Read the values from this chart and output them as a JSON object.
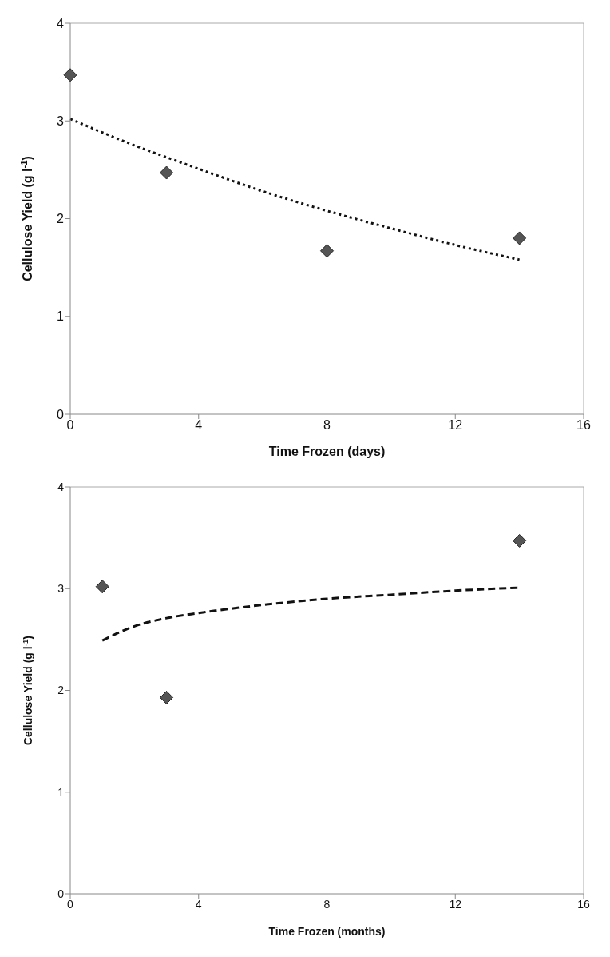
{
  "chart_data": [
    {
      "type": "scatter",
      "xlabel": "Time Frozen (days)",
      "ylabel": "Cellulose Yield (g l$^{-1}$)",
      "xlim": [
        0,
        16
      ],
      "xticks": [
        0,
        4,
        8,
        12,
        16
      ],
      "ylim": [
        0,
        4
      ],
      "yticks": [
        0,
        1,
        2,
        3,
        4
      ],
      "grid": false,
      "legend": false,
      "marker": "diamond",
      "series": [
        {
          "color": "#555555",
          "x": [
            0,
            3,
            8,
            14
          ],
          "values": [
            3.47,
            2.47,
            1.67,
            1.8
          ]
        },
        {
          "type": "line",
          "color": "#111111",
          "marker": "none",
          "line_style": "dotted",
          "x": [
            0,
            2,
            4,
            6,
            8,
            10,
            12,
            14
          ],
          "values": [
            3.02,
            2.75,
            2.51,
            2.28,
            2.08,
            1.9,
            1.73,
            1.58
          ]
        }
      ]
    },
    {
      "type": "scatter",
      "xlabel": "Time Frozen (months)",
      "ylabel": "Cellulose Yield (g l$^{-1}$)",
      "xlim": [
        0,
        16
      ],
      "xticks": [
        0,
        4,
        8,
        12,
        16
      ],
      "ylim": [
        0,
        4
      ],
      "yticks": [
        0,
        1,
        2,
        3,
        4
      ],
      "grid": false,
      "legend": false,
      "marker": "diamond",
      "series": [
        {
          "color": "#555555",
          "x": [
            1,
            3,
            14
          ],
          "values": [
            3.02,
            1.93,
            3.47
          ]
        },
        {
          "type": "line",
          "color": "#111111",
          "marker": "none",
          "line_style": "dashed",
          "x": [
            1,
            2,
            3,
            4,
            6,
            8,
            10,
            12,
            14
          ],
          "values": [
            2.49,
            2.63,
            2.71,
            2.76,
            2.84,
            2.9,
            2.94,
            2.98,
            3.01
          ]
        }
      ]
    }
  ]
}
